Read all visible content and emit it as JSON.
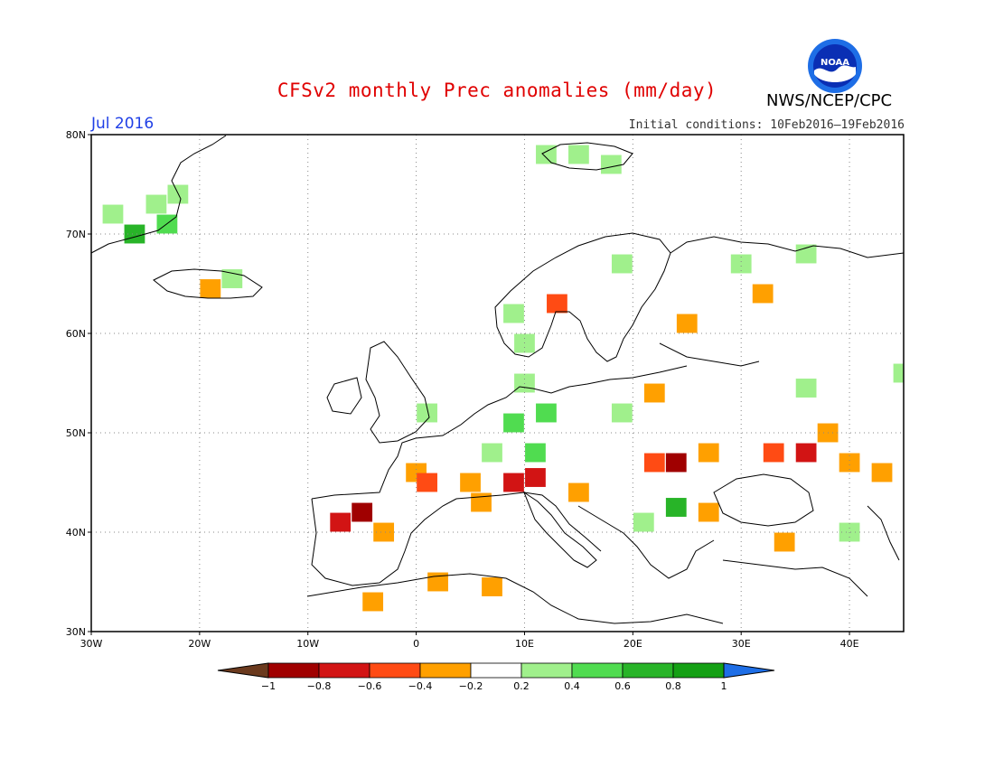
{
  "title": "CFSv2 monthly Prec anomalies (mm/day)",
  "agency": "NWS/NCEP/CPC",
  "logo_text": "NOAA",
  "period": "Jul 2016",
  "initial_conditions": "Initial conditions: 10Feb2016–19Feb2016",
  "map": {
    "lon_range": [
      -30,
      45
    ],
    "lat_range": [
      30,
      80
    ],
    "lon_ticks": [
      {
        "value": -30,
        "label": "30W"
      },
      {
        "value": -20,
        "label": "20W"
      },
      {
        "value": -10,
        "label": "10W"
      },
      {
        "value": 0,
        "label": "0"
      },
      {
        "value": 10,
        "label": "10E"
      },
      {
        "value": 20,
        "label": "20E"
      },
      {
        "value": 30,
        "label": "30E"
      },
      {
        "value": 40,
        "label": "40E"
      }
    ],
    "lat_ticks": [
      {
        "value": 30,
        "label": "30N"
      },
      {
        "value": 40,
        "label": "40N"
      },
      {
        "value": 50,
        "label": "50N"
      },
      {
        "value": 60,
        "label": "60N"
      },
      {
        "value": 70,
        "label": "70N"
      },
      {
        "value": 80,
        "label": "80N"
      }
    ],
    "gridlines": "dotted"
  },
  "legend": {
    "bins": [
      {
        "color": "#6b3a1e"
      },
      {
        "color": "#a00000"
      },
      {
        "color": "#d21414"
      },
      {
        "color": "#ff4b14"
      },
      {
        "color": "#ffa000"
      },
      {
        "color": "#ffffff"
      },
      {
        "color": "#a0f08c"
      },
      {
        "color": "#50dc50"
      },
      {
        "color": "#28b428"
      },
      {
        "color": "#14a014"
      },
      {
        "color": "#1e6ee6"
      }
    ],
    "tick_labels": [
      "−1",
      "−0.8",
      "−0.6",
      "−0.4",
      "−0.2",
      "0.2",
      "0.4",
      "0.6",
      "0.8",
      "1"
    ]
  },
  "anomaly_cells": [
    {
      "lon": -28,
      "lat": 72,
      "v": 0.3
    },
    {
      "lon": -24,
      "lat": 73,
      "v": 0.3
    },
    {
      "lon": -23,
      "lat": 71,
      "v": 0.5
    },
    {
      "lon": -26,
      "lat": 70,
      "v": 0.6
    },
    {
      "lon": -22,
      "lat": 74,
      "v": 0.3
    },
    {
      "lon": -19,
      "lat": 64.5,
      "v": -0.3
    },
    {
      "lon": -17,
      "lat": 65.5,
      "v": 0.3
    },
    {
      "lon": 12,
      "lat": 78,
      "v": 0.3
    },
    {
      "lon": 15,
      "lat": 78,
      "v": 0.3
    },
    {
      "lon": 18,
      "lat": 77,
      "v": 0.3
    },
    {
      "lon": 19,
      "lat": 67,
      "v": 0.3
    },
    {
      "lon": 36,
      "lat": 68,
      "v": 0.3
    },
    {
      "lon": 30,
      "lat": 67,
      "v": 0.3
    },
    {
      "lon": 32,
      "lat": 64,
      "v": -0.3
    },
    {
      "lon": 25,
      "lat": 61,
      "v": -0.3
    },
    {
      "lon": 13,
      "lat": 63,
      "v": -0.5
    },
    {
      "lon": 9,
      "lat": 62,
      "v": 0.3
    },
    {
      "lon": 10,
      "lat": 59,
      "v": 0.3
    },
    {
      "lon": 10,
      "lat": 55,
      "v": 0.3
    },
    {
      "lon": 1,
      "lat": 52,
      "v": 0.3
    },
    {
      "lon": 9,
      "lat": 51,
      "v": 0.5
    },
    {
      "lon": 12,
      "lat": 52,
      "v": 0.5
    },
    {
      "lon": 7,
      "lat": 48,
      "v": 0.3
    },
    {
      "lon": 11,
      "lat": 48,
      "v": 0.5
    },
    {
      "lon": 19,
      "lat": 52,
      "v": 0.3
    },
    {
      "lon": 22,
      "lat": 54,
      "v": -0.3
    },
    {
      "lon": 36,
      "lat": 54.5,
      "v": 0.3
    },
    {
      "lon": 45,
      "lat": 56,
      "v": 0.3
    },
    {
      "lon": 0,
      "lat": 46,
      "v": -0.3
    },
    {
      "lon": 1,
      "lat": 45,
      "v": -0.5
    },
    {
      "lon": 5,
      "lat": 45,
      "v": -0.3
    },
    {
      "lon": 9,
      "lat": 45,
      "v": -0.7
    },
    {
      "lon": 11,
      "lat": 45.5,
      "v": -0.6
    },
    {
      "lon": 6,
      "lat": 43,
      "v": -0.3
    },
    {
      "lon": -5,
      "lat": 42,
      "v": -0.9
    },
    {
      "lon": -7,
      "lat": 41,
      "v": -0.6
    },
    {
      "lon": -3,
      "lat": 40,
      "v": -0.3
    },
    {
      "lon": 24,
      "lat": 47,
      "v": -0.9
    },
    {
      "lon": 22,
      "lat": 47,
      "v": -0.5
    },
    {
      "lon": 27,
      "lat": 48,
      "v": -0.3
    },
    {
      "lon": 33,
      "lat": 48,
      "v": -0.5
    },
    {
      "lon": 36,
      "lat": 48,
      "v": -0.6
    },
    {
      "lon": 40,
      "lat": 47,
      "v": -0.3
    },
    {
      "lon": 43,
      "lat": 46,
      "v": -0.3
    },
    {
      "lon": 38,
      "lat": 50,
      "v": -0.3
    },
    {
      "lon": 24,
      "lat": 42.5,
      "v": 0.6
    },
    {
      "lon": 21,
      "lat": 41,
      "v": 0.3
    },
    {
      "lon": 27,
      "lat": 42,
      "v": -0.3
    },
    {
      "lon": 34,
      "lat": 39,
      "v": -0.3
    },
    {
      "lon": 40,
      "lat": 40,
      "v": 0.3
    },
    {
      "lon": 2,
      "lat": 35,
      "v": -0.3
    },
    {
      "lon": 7,
      "lat": 34.5,
      "v": -0.3
    },
    {
      "lon": -4,
      "lat": 33,
      "v": -0.3
    },
    {
      "lon": 15,
      "lat": 44,
      "v": -0.3
    }
  ]
}
